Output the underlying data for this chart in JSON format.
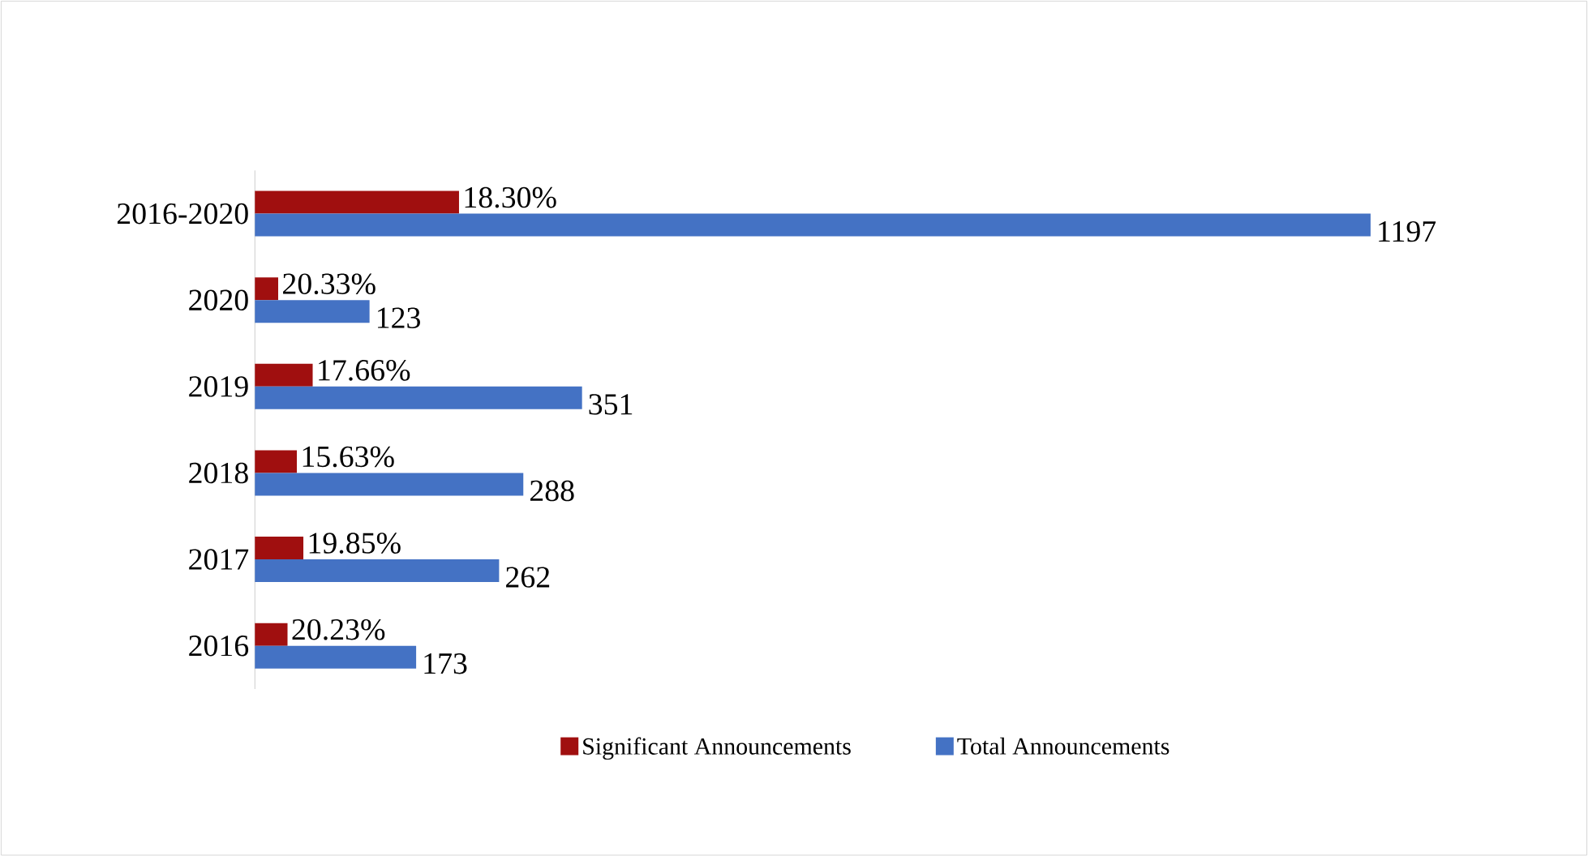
{
  "chart_data": {
    "type": "bar",
    "orientation": "horizontal",
    "categories": [
      "2016-2020",
      "2020",
      "2019",
      "2018",
      "2017",
      "2016"
    ],
    "series": [
      {
        "name": "Significant Announcements",
        "color": "#a00f0f",
        "values": [
          219,
          25,
          62,
          45,
          52,
          35
        ]
      },
      {
        "name": "Total Announcements",
        "color": "#4472c4",
        "values": [
          1197,
          123,
          351,
          288,
          262,
          173
        ],
        "value_labels": [
          "1197",
          "123",
          "351",
          "288",
          "262",
          "173"
        ]
      }
    ],
    "annotations": [
      {
        "text": "18.30%",
        "x": 219,
        "y": "2016-2020"
      },
      {
        "text": "20.33%",
        "x": 25,
        "y": "2020"
      },
      {
        "text": "17.66%",
        "x": 62,
        "y": "2019"
      },
      {
        "text": "15.63%",
        "x": 45,
        "y": "2018"
      },
      {
        "text": "19.85%",
        "x": 52,
        "y": "2017"
      },
      {
        "text": "20.23%",
        "x": 35,
        "y": "2016"
      }
    ],
    "legend": "bottom"
  }
}
